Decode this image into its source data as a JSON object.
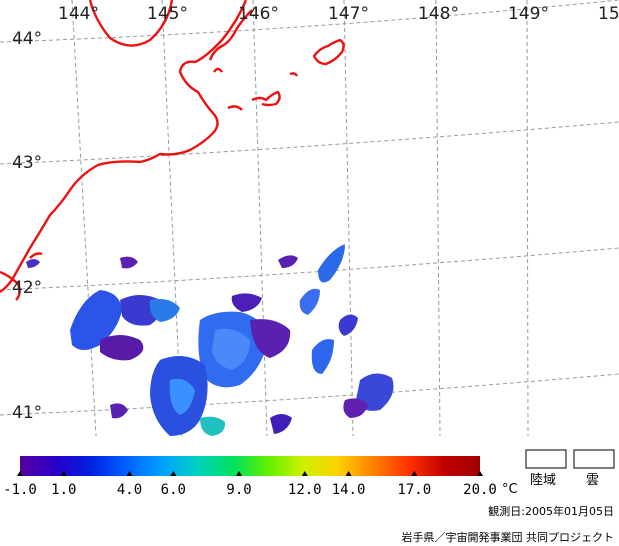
{
  "map": {
    "longitude_labels": [
      "144°",
      "145°",
      "146°",
      "147°",
      "148°",
      "149°",
      "15"
    ],
    "latitude_labels": [
      "44°",
      "43°",
      "42°",
      "41°"
    ]
  },
  "colorbar": {
    "ticks": [
      "-1.0",
      "1.0",
      "4.0",
      "6.0",
      "9.0",
      "12.0",
      "14.0",
      "17.0",
      "20.0"
    ],
    "unit": "°C",
    "gradient_colors": [
      "#5500a0",
      "#2a00c8",
      "#0022e0",
      "#0060ff",
      "#00a0ff",
      "#00d0c0",
      "#00e060",
      "#60f000",
      "#d0f000",
      "#ffd000",
      "#ff8000",
      "#ff3000",
      "#c00000",
      "#a00000"
    ]
  },
  "legend": {
    "land_label": "陸域",
    "cloud_label": "雲"
  },
  "footer": {
    "observation_date": "観測日:2005年01月05日",
    "credit": "岩手県／宇宙開発事業団 共同プロジェクト"
  },
  "colors": {
    "coastline": "#ee1111",
    "grid": "#9a9a9a"
  }
}
